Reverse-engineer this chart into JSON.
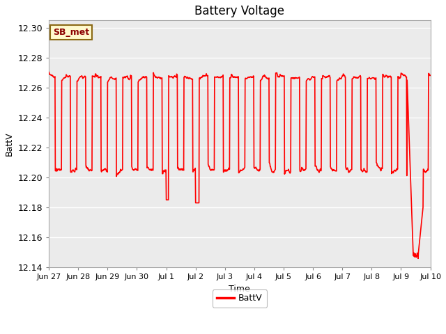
{
  "title": "Battery Voltage",
  "xlabel": "Time",
  "ylabel": "BattV",
  "legend_label": "BattV",
  "label_box_text": "SB_met",
  "ylim": [
    12.14,
    12.305
  ],
  "line_color": "#FF0000",
  "bg_color": "#EBEBEB",
  "fig_bg": "#FFFFFF",
  "x_tick_labels": [
    "Jun 27",
    "Jun 28",
    "Jun 29",
    "Jun 30",
    "Jul 1",
    "Jul 2",
    "Jul 3",
    "Jul 4",
    "Jul 5",
    "Jul 6",
    "Jul 7",
    "Jul 8",
    "Jul 9",
    "Jul 10"
  ],
  "x_tick_positions": [
    0,
    24,
    48,
    72,
    96,
    120,
    144,
    168,
    192,
    216,
    240,
    264,
    288,
    312
  ],
  "grid_color": "#FFFFFF",
  "grid_lw": 1.0,
  "line_lw": 1.2
}
